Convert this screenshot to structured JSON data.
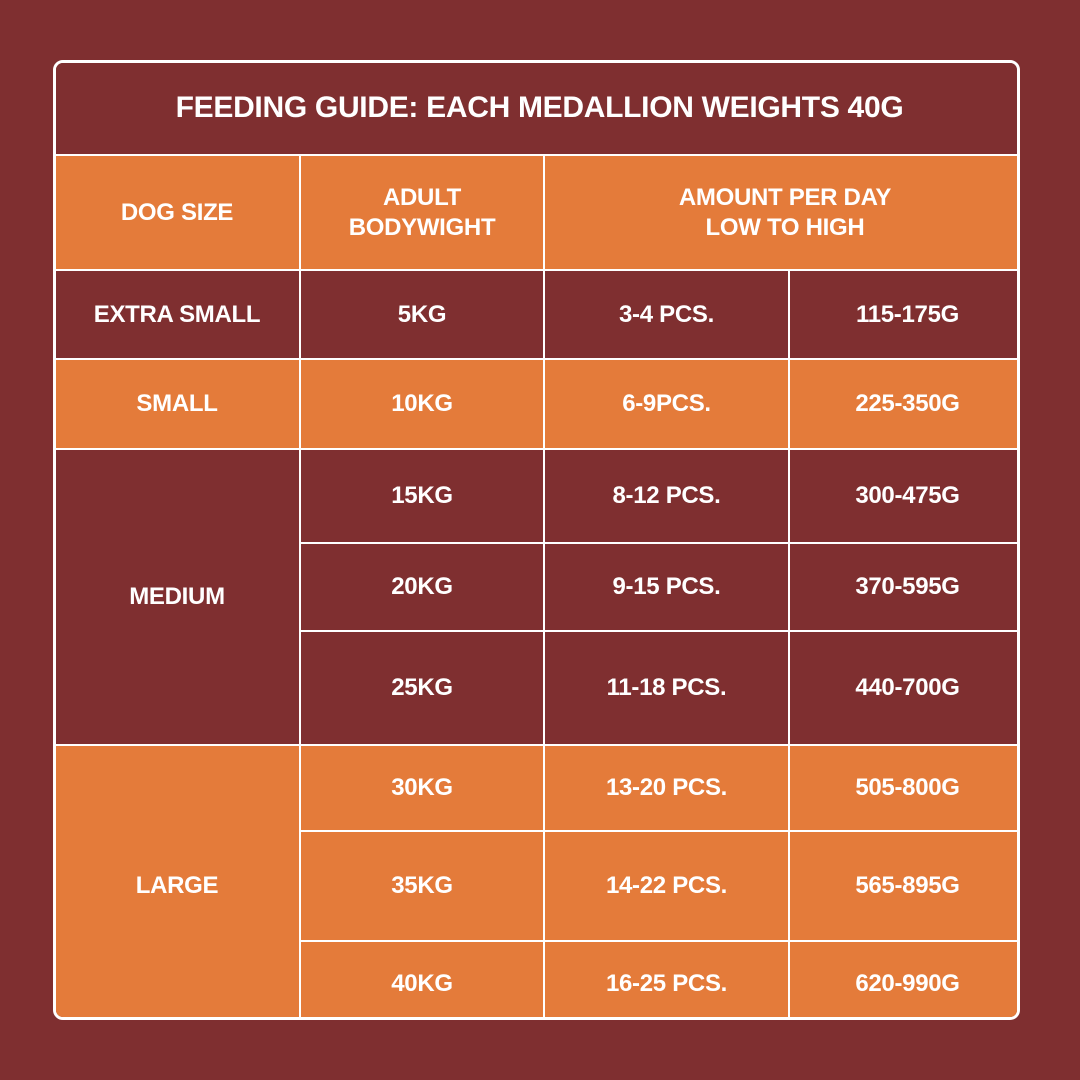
{
  "title": "FEEDING GUIDE: EACH MEDALLION WEIGHTS 40G",
  "header": {
    "dog_size": "DOG SIZE",
    "bodyweight": [
      "ADULT",
      "BODYWIGHT"
    ],
    "amount": [
      "AMOUNT PER DAY",
      "LOW TO HIGH"
    ]
  },
  "groups": [
    {
      "size": "EXTRA SMALL",
      "rows": [
        [
          "5KG",
          "3-4 PCS.",
          "115-175G"
        ]
      ]
    },
    {
      "size": "SMALL",
      "rows": [
        [
          "10KG",
          "6-9PCS.",
          "225-350G"
        ]
      ]
    },
    {
      "size": "MEDIUM",
      "rows": [
        [
          "15KG",
          "8-12 PCS.",
          "300-475G"
        ],
        [
          "20KG",
          "9-15 PCS.",
          "370-595G"
        ],
        [
          "25KG",
          "11-18 PCS.",
          "440-700G"
        ]
      ]
    },
    {
      "size": "LARGE",
      "rows": [
        [
          "30KG",
          "13-20 PCS.",
          "505-800G"
        ],
        [
          "35KG",
          "14-22 PCS.",
          "565-895G"
        ],
        [
          "40KG",
          "16-25 PCS.",
          "620-990G"
        ]
      ]
    }
  ]
}
